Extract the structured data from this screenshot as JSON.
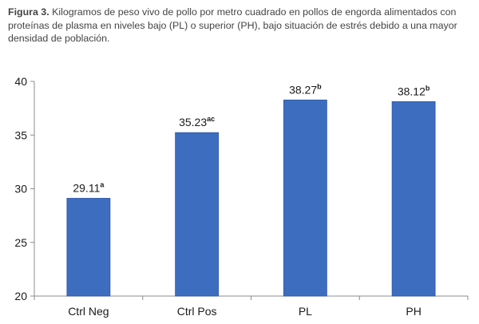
{
  "caption": {
    "label": "Figura 3.",
    "text": " Kilogramos de peso vivo de pollo por metro cuadrado en pollos de engorda alimentados con proteínas de plasma en niveles bajo (PL) o superior (PH), bajo situación de estrés debido a una mayor densidad de población."
  },
  "colors": {
    "bar": "#3d6dbf",
    "bar_edge": "#2e57a3",
    "axis": "#8c8c8c",
    "text": "#1a1a1a"
  },
  "chart_data": {
    "type": "bar",
    "categories": [
      "Ctrl Neg",
      "Ctrl Pos",
      "PL",
      "PH"
    ],
    "values": [
      29.11,
      35.23,
      38.27,
      38.12
    ],
    "value_labels": [
      "29.11",
      "35.23",
      "38.27",
      "38.12"
    ],
    "superscripts": [
      "a",
      "ac",
      "b",
      "b"
    ],
    "ylim": [
      20,
      40
    ],
    "yticks": [
      20,
      25,
      30,
      35,
      40
    ],
    "grid": false,
    "legend": "none",
    "title": "",
    "xlabel": "",
    "ylabel": ""
  }
}
